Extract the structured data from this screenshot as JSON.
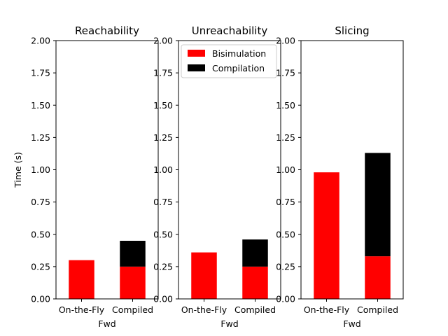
{
  "colors": {
    "bisimulation": "#ff0000",
    "compilation": "#000000",
    "axis": "#000000",
    "background": "#ffffff"
  },
  "legend": {
    "items": [
      "Bisimulation",
      "Compilation"
    ],
    "placement": "upper-left of middle panel"
  },
  "chart_data": [
    {
      "type": "bar",
      "stacked": true,
      "title": "Reachability",
      "xlabel": "Fwd",
      "ylabel": "Time (s)",
      "ylim": [
        0,
        2
      ],
      "yticks": [
        "0.00",
        "0.25",
        "0.50",
        "0.75",
        "1.00",
        "1.25",
        "1.50",
        "1.75",
        "2.00"
      ],
      "categories": [
        "On-the-Fly",
        "Compiled"
      ],
      "series": [
        {
          "name": "Bisimulation",
          "values": [
            0.3,
            0.25
          ]
        },
        {
          "name": "Compilation",
          "values": [
            0,
            0.2
          ]
        }
      ],
      "grid": false
    },
    {
      "type": "bar",
      "stacked": true,
      "title": "Unreachability",
      "xlabel": "Fwd",
      "ylabel": "",
      "ylim": [
        0,
        2
      ],
      "yticks": [
        "0.00",
        "0.25",
        "0.50",
        "0.75",
        "1.00",
        "1.25",
        "1.50",
        "1.75",
        "2.00"
      ],
      "categories": [
        "On-the-Fly",
        "Compiled"
      ],
      "series": [
        {
          "name": "Bisimulation",
          "values": [
            0.36,
            0.25
          ]
        },
        {
          "name": "Compilation",
          "values": [
            0,
            0.21
          ]
        }
      ],
      "grid": false,
      "legend": true
    },
    {
      "type": "bar",
      "stacked": true,
      "title": "Slicing",
      "xlabel": "Fwd",
      "ylabel": "",
      "ylim": [
        0,
        2
      ],
      "yticks": [
        "0.00",
        "0.25",
        "0.50",
        "0.75",
        "1.00",
        "1.25",
        "1.50",
        "1.75",
        "2.00"
      ],
      "categories": [
        "On-the-Fly",
        "Compiled"
      ],
      "series": [
        {
          "name": "Bisimulation",
          "values": [
            0.98,
            0.33
          ]
        },
        {
          "name": "Compilation",
          "values": [
            0,
            0.8
          ]
        }
      ],
      "grid": false
    }
  ]
}
